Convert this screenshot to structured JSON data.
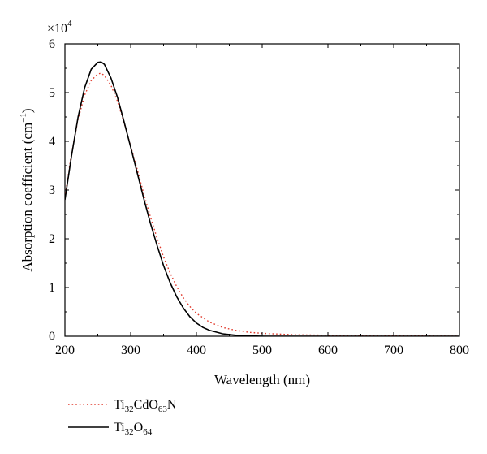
{
  "chart_data": {
    "type": "line",
    "xlabel": "Wavelength (nm)",
    "ylabel_main": "Absorption coefficient (cm",
    "ylabel_sup": "−1",
    "ylabel_close": ")",
    "multiplier": {
      "base": "×10",
      "exp": "4"
    },
    "xlim": [
      200,
      800
    ],
    "ylim": [
      0,
      6
    ],
    "xticks": [
      200,
      300,
      400,
      500,
      600,
      700,
      800
    ],
    "yticks": [
      0,
      1,
      2,
      3,
      4,
      5,
      6
    ],
    "grid": false,
    "legend_position": "below-left",
    "series": [
      {
        "name": "Ti32CdO63N",
        "legend_parts": [
          {
            "t": "Ti",
            "sub": false
          },
          {
            "t": "32",
            "sub": true
          },
          {
            "t": "CdO",
            "sub": false
          },
          {
            "t": "63",
            "sub": true
          },
          {
            "t": "N",
            "sub": false
          }
        ],
        "color": "#e0392b",
        "style": "dotted",
        "x": [
          200,
          210,
          220,
          230,
          240,
          250,
          255,
          260,
          270,
          280,
          290,
          300,
          310,
          320,
          330,
          340,
          350,
          360,
          370,
          380,
          390,
          400,
          420,
          440,
          460,
          480,
          500,
          550,
          600,
          650,
          700,
          800
        ],
        "y": [
          2.85,
          3.75,
          4.45,
          4.95,
          5.25,
          5.38,
          5.4,
          5.35,
          5.15,
          4.82,
          4.38,
          3.9,
          3.42,
          2.92,
          2.45,
          2.02,
          1.63,
          1.3,
          1.02,
          0.79,
          0.61,
          0.47,
          0.29,
          0.18,
          0.12,
          0.08,
          0.06,
          0.03,
          0.02,
          0.01,
          0.01,
          0.0
        ]
      },
      {
        "name": "Ti32O64",
        "legend_parts": [
          {
            "t": "Ti",
            "sub": false
          },
          {
            "t": "32",
            "sub": true
          },
          {
            "t": "O",
            "sub": false
          },
          {
            "t": "64",
            "sub": true
          }
        ],
        "color": "#000000",
        "style": "solid",
        "x": [
          200,
          210,
          220,
          230,
          240,
          250,
          255,
          260,
          270,
          280,
          290,
          300,
          310,
          320,
          330,
          340,
          350,
          360,
          370,
          380,
          390,
          400,
          410,
          420,
          440,
          460,
          480,
          500,
          550,
          600,
          700,
          800
        ],
        "y": [
          2.8,
          3.7,
          4.5,
          5.1,
          5.48,
          5.62,
          5.63,
          5.58,
          5.3,
          4.9,
          4.4,
          3.88,
          3.35,
          2.82,
          2.32,
          1.87,
          1.45,
          1.1,
          0.81,
          0.58,
          0.4,
          0.27,
          0.18,
          0.12,
          0.05,
          0.02,
          0.01,
          0.0,
          0.0,
          0.0,
          0.0,
          0.0
        ]
      }
    ]
  }
}
